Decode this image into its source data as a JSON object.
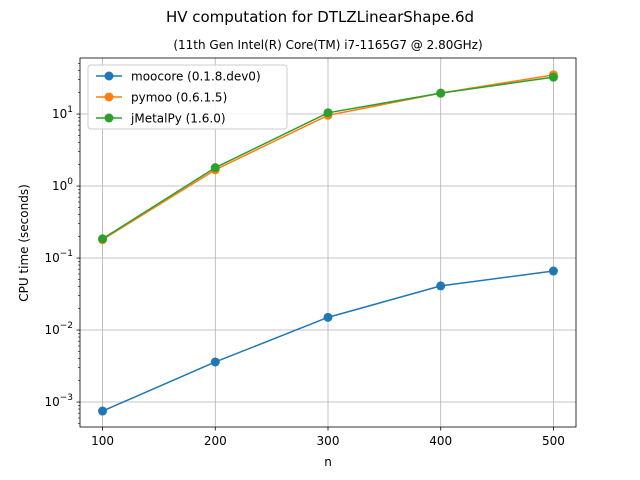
{
  "chart_data": {
    "type": "line",
    "title": "HV computation for DTLZLinearShape.6d",
    "subtitle": "(11th Gen Intel(R) Core(TM) i7-1165G7 @ 2.80GHz)",
    "xlabel": "n",
    "ylabel": "CPU time (seconds)",
    "yscale": "log",
    "x": [
      100,
      200,
      300,
      400,
      500
    ],
    "xlim": [
      80,
      520
    ],
    "ylim": [
      0.00045,
      60
    ],
    "xticks": [
      100,
      200,
      300,
      400,
      500
    ],
    "xtick_labels": [
      "100",
      "200",
      "300",
      "400",
      "500"
    ],
    "yticks": [
      0.001,
      0.01,
      0.1,
      1,
      10
    ],
    "ytick_labels": [
      {
        "base": "10",
        "exp": "−3"
      },
      {
        "base": "10",
        "exp": "−2"
      },
      {
        "base": "10",
        "exp": "−1"
      },
      {
        "base": "10",
        "exp": "0"
      },
      {
        "base": "10",
        "exp": "1"
      }
    ],
    "grid": true,
    "legend_position": "top-left",
    "series": [
      {
        "name": "moocore (0.1.8.dev0)",
        "color": "#1f77b4",
        "marker": "circle",
        "values": [
          0.00075,
          0.0036,
          0.015,
          0.041,
          0.066
        ]
      },
      {
        "name": "pymoo (0.6.1.5)",
        "color": "#ff7f0e",
        "marker": "circle",
        "values": [
          0.18,
          1.68,
          9.6,
          19.5,
          35.0
        ]
      },
      {
        "name": "jMetalPy (1.6.0)",
        "color": "#2ca02c",
        "marker": "circle",
        "values": [
          0.185,
          1.8,
          10.4,
          19.5,
          32.5
        ]
      }
    ]
  }
}
